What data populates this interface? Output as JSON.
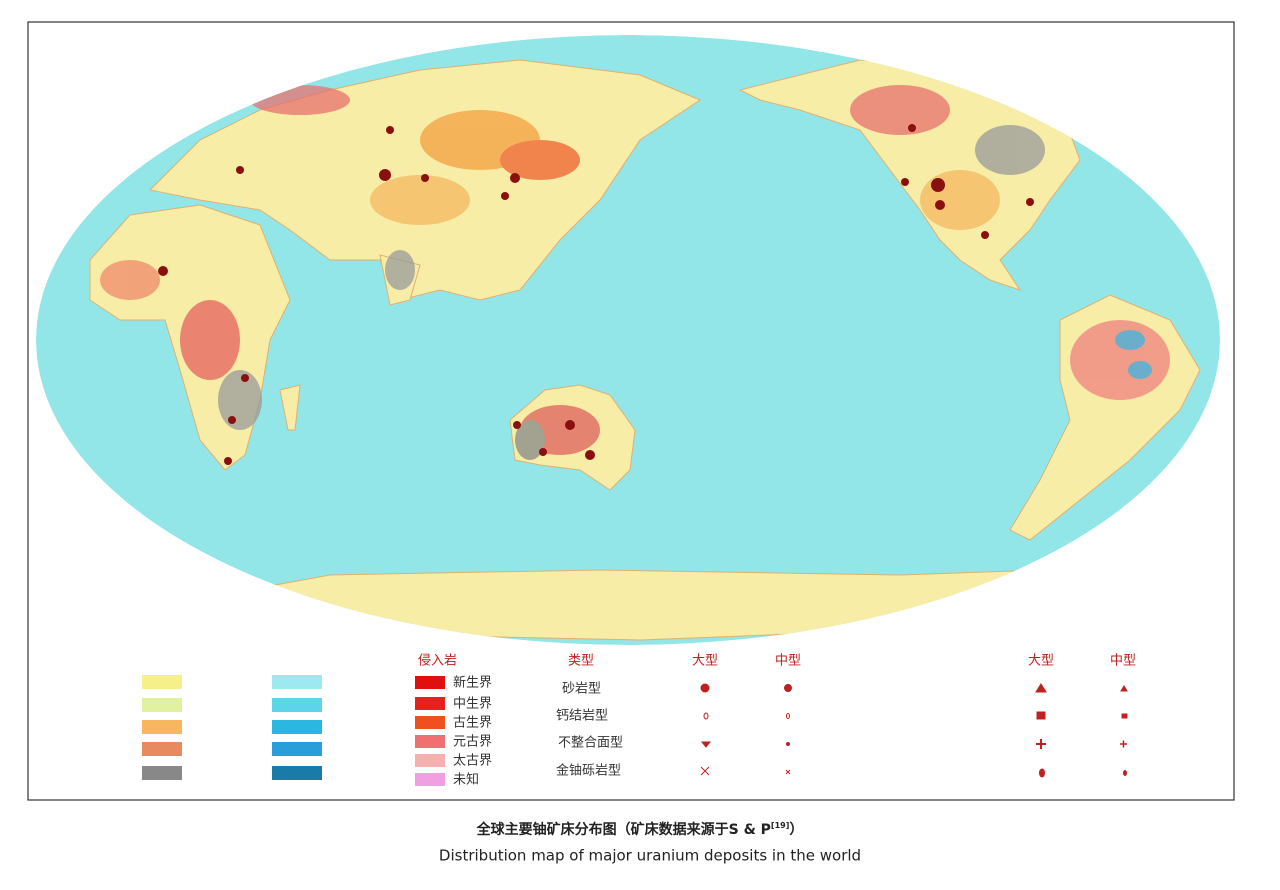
{
  "legend": {
    "intrusive_title": "侵入岩",
    "intrusive_items": [
      "新生界",
      "中生界",
      "古生界",
      "元古界",
      "太古界",
      "未知"
    ],
    "type_header": "类型",
    "large": "大型",
    "medium": "中型",
    "types": [
      "砂岩型",
      "钙结岩型",
      "不整合面型",
      "金铀砾岩型"
    ],
    "right_large": "大型",
    "right_medium": "中型"
  },
  "caption": {
    "title_cn": "全球主要铀矿床分布图（矿床数据来源于S & P",
    "title_cn_sup": "[19]",
    "title_cn_end": "）",
    "title_en": "Distribution map of major uranium deposits in the world"
  }
}
